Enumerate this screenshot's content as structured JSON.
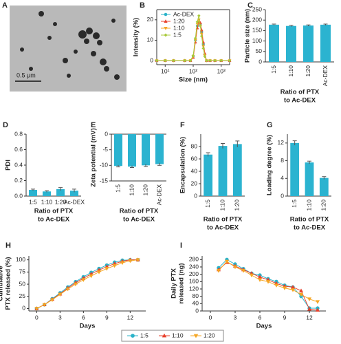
{
  "chart_data": [
    {
      "type": "image",
      "label": "A",
      "scale_bar": "0.5 μm"
    },
    {
      "type": "line",
      "label": "B",
      "xlabel": "Size (nm)",
      "ylabel": "Intensity (%)",
      "xlog": true,
      "x": [
        5,
        10,
        20,
        50,
        80,
        100,
        120,
        140,
        160,
        180,
        200,
        230,
        260,
        300,
        400,
        600,
        1000,
        2000
      ],
      "xlim": [
        5,
        2000
      ],
      "xticks": [
        {
          "value": 10,
          "label": "10¹"
        },
        {
          "value": 100,
          "label": "10²"
        },
        {
          "value": 1000,
          "label": "10³"
        }
      ],
      "ylim": [
        -2,
        25
      ],
      "yticks": [
        0,
        10,
        20
      ],
      "legend": "upper left",
      "series": [
        {
          "name": "Ac-DEX",
          "color": "#2bb3c9",
          "marker": "circle",
          "values": [
            0,
            0,
            0,
            0,
            0,
            2,
            10,
            17,
            19,
            18,
            14,
            8,
            3,
            0,
            0,
            0,
            0,
            0
          ]
        },
        {
          "name": "1:20",
          "color": "#e8412c",
          "marker": "triangle-up",
          "values": [
            0,
            0,
            0,
            0,
            0,
            1.5,
            9,
            16,
            19,
            18.5,
            15,
            9,
            3.5,
            0,
            0,
            0,
            0,
            0
          ]
        },
        {
          "name": "1:10",
          "color": "#f5a623",
          "marker": "triangle-down",
          "values": [
            0,
            0,
            0,
            0,
            0,
            2,
            10,
            18,
            20,
            17,
            13,
            7,
            2.5,
            0,
            0,
            0,
            0,
            0
          ]
        },
        {
          "name": "1:5",
          "color": "#a8c93a",
          "marker": "diamond",
          "values": [
            0,
            0,
            0,
            0,
            0,
            2.5,
            11,
            19,
            22,
            17,
            12,
            6,
            2,
            0,
            0,
            0,
            0,
            0
          ]
        }
      ]
    },
    {
      "type": "bar",
      "label": "C",
      "ylabel": "Particle size (nm)",
      "xlabel": [
        "Ratio of PTX",
        "to Ac-DEX"
      ],
      "categories": [
        "1:5",
        "1:10",
        "1:20",
        "Ac-DEX"
      ],
      "values": [
        178,
        172,
        174,
        178
      ],
      "errors": [
        3,
        3,
        3,
        3
      ],
      "color": "#2bb3d0",
      "ylim": [
        0,
        250
      ],
      "yticks": [
        0,
        50,
        100,
        150,
        200,
        250
      ]
    },
    {
      "type": "bar",
      "label": "D",
      "ylabel": "PDI",
      "xlabel": [
        "Ratio of PTX",
        "to Ac-DEX"
      ],
      "categories": [
        "1:5",
        "1:10",
        "1:20",
        "Ac-DEX"
      ],
      "values": [
        0.08,
        0.06,
        0.09,
        0.07
      ],
      "errors": [
        0.01,
        0.01,
        0.02,
        0.02
      ],
      "color": "#2bb3d0",
      "ylim": [
        0,
        0.8
      ],
      "yticks": [
        {
          "value": 0,
          "label": "0.0"
        },
        0.2,
        0.4,
        0.6,
        0.8
      ]
    },
    {
      "type": "bar",
      "label": "E",
      "ylabel": "Zeta potential (mV)",
      "xlabel": [
        "Ratio of PTX",
        "to Ac-DEX"
      ],
      "categories": [
        "1:5",
        "1:10",
        "1:20",
        "Ac-DEX"
      ],
      "values": [
        -10.2,
        -10.4,
        -10.0,
        -9.6
      ],
      "errors": [
        0.3,
        0.3,
        0.4,
        0.4
      ],
      "color": "#2bb3d0",
      "ylim": [
        -15,
        0
      ],
      "yticks": [
        -15,
        -10,
        -5,
        0
      ]
    },
    {
      "type": "bar",
      "label": "F",
      "ylabel": "Encapsulation (%)",
      "xlabel": [
        "Ratio of PTX",
        "to Ac-DEX"
      ],
      "categories": [
        "1:5",
        "1:10",
        "1:20"
      ],
      "values": [
        67,
        81,
        84
      ],
      "errors": [
        3,
        4,
        5
      ],
      "color": "#2bb3d0",
      "ylim": [
        0,
        100
      ],
      "yticks": [
        0,
        20,
        40,
        60,
        80
      ]
    },
    {
      "type": "bar",
      "label": "G",
      "ylabel": "Loading degree (%)",
      "xlabel": [
        "Ratio of PTX",
        "to Ac-DEX"
      ],
      "categories": [
        "1:5",
        "1:10",
        "1:20"
      ],
      "values": [
        12.0,
        7.6,
        4.1
      ],
      "errors": [
        0.5,
        0.3,
        0.3
      ],
      "color": "#2bb3d0",
      "ylim": [
        0,
        14
      ],
      "yticks": [
        0,
        4,
        8,
        12
      ]
    },
    {
      "type": "line",
      "label": "H",
      "xlabel": "Days",
      "ylabel": [
        "Cumulative",
        "PTX released (%)"
      ],
      "x": [
        0,
        1,
        2,
        3,
        4,
        5,
        6,
        7,
        8,
        9,
        10,
        11,
        12,
        13
      ],
      "xlim": [
        -1,
        14
      ],
      "xticks": [
        0,
        3,
        6,
        9,
        12
      ],
      "ylim": [
        -5,
        108
      ],
      "yticks": [
        0,
        25,
        50,
        75,
        100
      ],
      "legend": "bottom",
      "series": [
        {
          "name": "1:5",
          "color": "#2bb3c9",
          "marker": "circle",
          "values": [
            0,
            8,
            20,
            32,
            44,
            55,
            65,
            74,
            82,
            89,
            95,
            99,
            100,
            100
          ]
        },
        {
          "name": "1:10",
          "color": "#e8412c",
          "marker": "triangle-up",
          "values": [
            0,
            8,
            19,
            30,
            42,
            53,
            62,
            71,
            79,
            86,
            92,
            97,
            100,
            100
          ]
        },
        {
          "name": "1:20",
          "color": "#f5a623",
          "marker": "triangle-down",
          "values": [
            0,
            8,
            18,
            29,
            40,
            50,
            59,
            67,
            75,
            82,
            88,
            94,
            98,
            100
          ]
        }
      ]
    },
    {
      "type": "line",
      "label": "I",
      "xlabel": "Days",
      "ylabel": [
        "Daily PTX",
        "released (ng)"
      ],
      "x": [
        1,
        2,
        3,
        4,
        5,
        6,
        7,
        8,
        9,
        10,
        11,
        12,
        13
      ],
      "xlim": [
        -1,
        14
      ],
      "xticks": [
        0,
        3,
        6,
        9,
        12
      ],
      "ylim": [
        0,
        300
      ],
      "yticks": [
        0,
        40,
        80,
        120,
        160,
        200,
        240,
        280
      ],
      "series": [
        {
          "name": "1:5",
          "color": "#2bb3c9",
          "marker": "circle",
          "values": [
            235,
            280,
            255,
            230,
            205,
            195,
            175,
            160,
            140,
            130,
            80,
            15,
            15
          ]
        },
        {
          "name": "1:10",
          "color": "#e8412c",
          "marker": "triangle-up",
          "values": [
            225,
            265,
            245,
            225,
            205,
            185,
            170,
            150,
            135,
            130,
            110,
            10,
            5
          ]
        },
        {
          "name": "1:20",
          "color": "#f5a623",
          "marker": "triangle-down",
          "values": [
            220,
            270,
            240,
            220,
            195,
            170,
            160,
            140,
            125,
            115,
            90,
            65,
            50
          ]
        }
      ]
    }
  ]
}
